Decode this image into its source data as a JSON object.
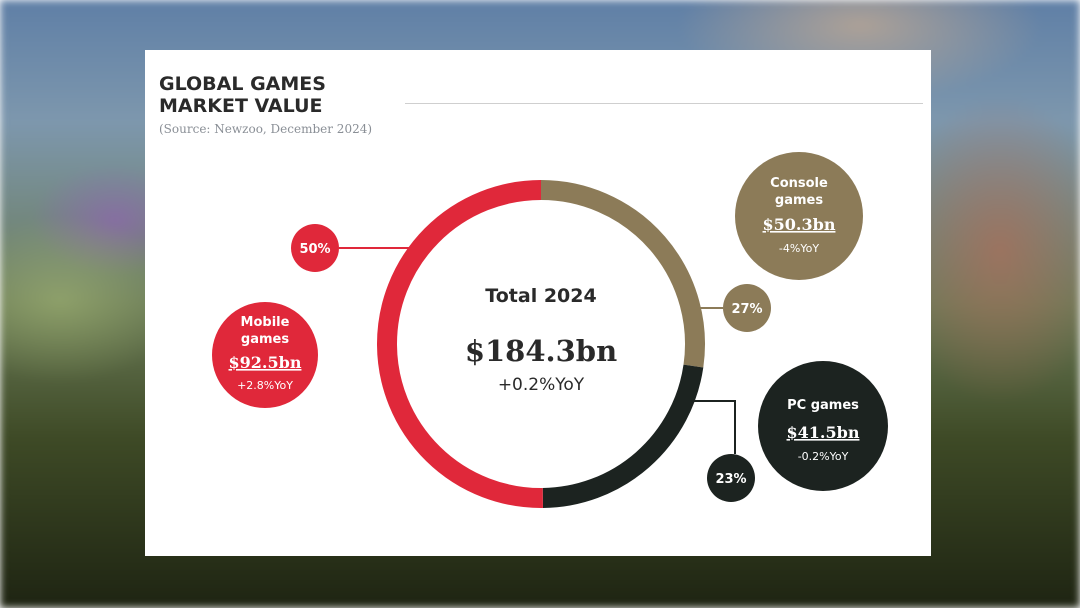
{
  "page": {
    "title": "GLOBAL GAMES MARKET VALUE",
    "source": "(Source: Newzoo, December 2024)"
  },
  "chart_data": {
    "type": "pie",
    "center": {
      "label": "Total 2024",
      "value": "$184.3bn",
      "change": "+0.2%YoY"
    },
    "slices": [
      {
        "name": "Console games",
        "value": 50.3,
        "value_label": "$50.3bn",
        "change": "-4%YoY",
        "percent_label": "27%",
        "color": "#8c7b58"
      },
      {
        "name": "PC games",
        "value": 41.5,
        "value_label": "$41.5bn",
        "change": "-0.2%YoY",
        "percent_label": "23%",
        "color": "#1c2320"
      },
      {
        "name": "Mobile games",
        "value": 92.5,
        "value_label": "$92.5bn",
        "change": "+2.8%YoY",
        "percent_label": "50%",
        "color": "#e0283a"
      }
    ]
  }
}
